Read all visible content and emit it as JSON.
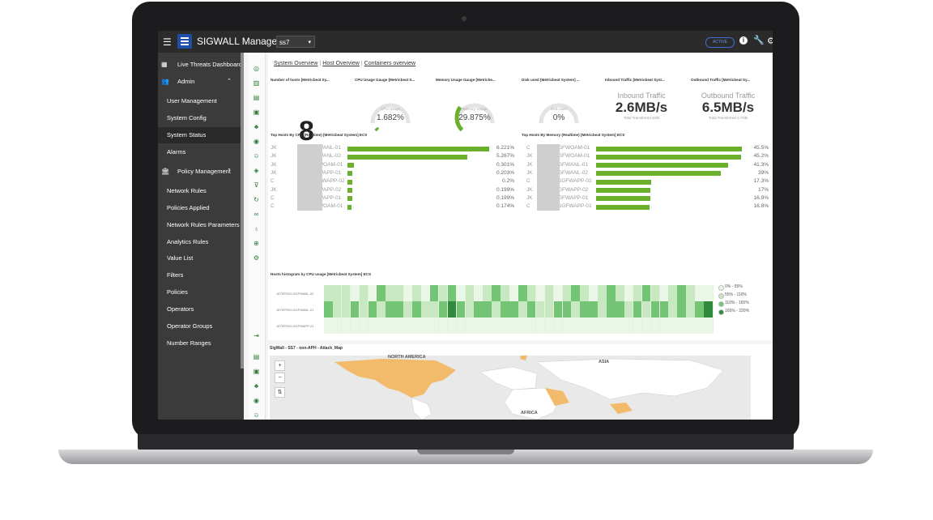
{
  "header": {
    "app_title": "SIGWALL Management",
    "env_value": "ss7",
    "status_pill": "ACTIVE"
  },
  "sidebar": {
    "items": [
      {
        "label": "Live Threats Dashboard",
        "icon": "dashboard-icon"
      },
      {
        "label": "Admin",
        "icon": "users-icon"
      },
      {
        "label": "User Management"
      },
      {
        "label": "System Config"
      },
      {
        "label": "System Status"
      },
      {
        "label": "Alarms"
      },
      {
        "label": "Policy Management",
        "icon": "bank-icon"
      },
      {
        "label": "Network Rules"
      },
      {
        "label": "Policies Applied"
      },
      {
        "label": "Network Rules Parameters"
      },
      {
        "label": "Analytics Rules"
      },
      {
        "label": "Value List"
      },
      {
        "label": "Filters"
      },
      {
        "label": "Policies"
      },
      {
        "label": "Operators"
      },
      {
        "label": "Operator Groups"
      },
      {
        "label": "Number Ranges"
      }
    ]
  },
  "tabs": [
    "System Overview",
    "Host Overview",
    "Containers overview"
  ],
  "cards": {
    "hosts_title": "Number of hosts [Metricbeat Sy...",
    "hosts_value": "8",
    "cpu_title": "CPU Usage Gauge [Metricbeat S...",
    "cpu_label": "CPU Usage",
    "cpu_value": "1.682%",
    "cpu_fraction": 0.017,
    "mem_title": "Memory Usage Gauge [Metricbe...",
    "mem_label": "Memory Usage",
    "mem_value": "29.875%",
    "mem_fraction": 0.299,
    "disk_title": "Disk used [Metricbeat System] ...",
    "disk_label": "Disk used",
    "disk_value": "0%",
    "disk_fraction": 0,
    "in_title": "Inbound Traffic [Metricbeat Syst...",
    "in_label": "Inbound Traffic",
    "in_value": "2.6MB/s",
    "in_sub": "Total Transferred 3GB",
    "out_title": "Outbound Traffic [Metricbeat Sy...",
    "out_label": "Outbound Traffic",
    "out_value": "6.5MB/s",
    "out_sub": "Total Transferred 2.7GB"
  },
  "cpu_hosts": {
    "title": "Top Hosts By CPU (Realtime) [Metricbeat System] ECS",
    "rows": [
      {
        "prefix": "JK",
        "name": "GFWANL-01",
        "value": "6.221%",
        "pct": 6.221
      },
      {
        "prefix": "JK",
        "name": "GFWANL-02",
        "value": "5.267%",
        "pct": 5.267
      },
      {
        "prefix": "JK",
        "name": "GFWOAM-01",
        "value": "0.301%",
        "pct": 0.301
      },
      {
        "prefix": "JK",
        "name": "GFWAPP-01",
        "value": "0.203%",
        "pct": 0.203
      },
      {
        "prefix": "C",
        "name": "SGFWAPP-02",
        "value": "0.2%",
        "pct": 0.2
      },
      {
        "prefix": "JK",
        "name": "GFWAPP-02",
        "value": "0.199%",
        "pct": 0.199
      },
      {
        "prefix": "C",
        "name": "GFWAPP-01",
        "value": "0.199%",
        "pct": 0.199
      },
      {
        "prefix": "C",
        "name": "GFWOAM-01",
        "value": "0.174%",
        "pct": 0.174
      }
    ]
  },
  "mem_hosts": {
    "title": "Top Hosts By Memory (Realtime) [Metricbeat System] ECS",
    "rows": [
      {
        "prefix": "C",
        "name": "GFWOAM-01",
        "value": "45.5%",
        "pct": 45.5
      },
      {
        "prefix": "JK",
        "name": "GFWOAM-01",
        "value": "45.2%",
        "pct": 45.2
      },
      {
        "prefix": "JK",
        "name": "GFWANL-01",
        "value": "41.3%",
        "pct": 41.3
      },
      {
        "prefix": "JK",
        "name": "GFWANL-02",
        "value": "39%",
        "pct": 39
      },
      {
        "prefix": "C",
        "name": "SGFWAPP-02",
        "value": "17.3%",
        "pct": 17.3
      },
      {
        "prefix": "JK",
        "name": "GFWAPP-02",
        "value": "17%",
        "pct": 17
      },
      {
        "prefix": "JK",
        "name": "GFWAPP-01",
        "value": "16.9%",
        "pct": 16.9
      },
      {
        "prefix": "C",
        "name": "SGFWAPP-01",
        "value": "16.8%",
        "pct": 16.8
      }
    ]
  },
  "histogram": {
    "title": "Hosts histogram by CPU usage [Metricbeat System] ECS",
    "rows": [
      "JKTBTR03-SGFWANL-02",
      "JKTBTR03-SGFWANL-01",
      "JKTBTR03-SGFWAPP-01"
    ],
    "legend": [
      "0% - 55%",
      "55% - 110%",
      "110% - 165%",
      "165% - 220%"
    ],
    "colors": [
      "#eaf6e6",
      "#c7e8c0",
      "#74c476",
      "#2f8a3e"
    ],
    "cells": [
      [
        1,
        1,
        1,
        0,
        1,
        0,
        2,
        1,
        1,
        0,
        1,
        0,
        2,
        1,
        2,
        0,
        1,
        0,
        1,
        2,
        1,
        0,
        2,
        1,
        0,
        1,
        0,
        1,
        2,
        1,
        0,
        1,
        2,
        1,
        0,
        1,
        2,
        1,
        0,
        1,
        2,
        1,
        0,
        0
      ],
      [
        2,
        1,
        1,
        2,
        1,
        2,
        1,
        2,
        2,
        1,
        2,
        1,
        1,
        2,
        3,
        2,
        1,
        2,
        2,
        1,
        2,
        2,
        1,
        2,
        1,
        1,
        2,
        2,
        1,
        2,
        2,
        1,
        2,
        2,
        1,
        2,
        1,
        2,
        2,
        1,
        2,
        1,
        2,
        3
      ],
      [
        0,
        0,
        0,
        0,
        0,
        0,
        0,
        0,
        0,
        0,
        0,
        0,
        0,
        0,
        0,
        0,
        0,
        0,
        0,
        0,
        0,
        0,
        0,
        0,
        0,
        0,
        0,
        0,
        0,
        0,
        0,
        0,
        0,
        0,
        0,
        0,
        0,
        0,
        0,
        0,
        0,
        0,
        0,
        0
      ]
    ]
  },
  "map": {
    "title": "SigWall - SS7 - non-APH - Attack_Map",
    "labels": [
      "NORTH AMERICA",
      "ASIA",
      "AFRICA"
    ],
    "zoom_in": "+",
    "zoom_out": "−",
    "fit": "⇅"
  }
}
